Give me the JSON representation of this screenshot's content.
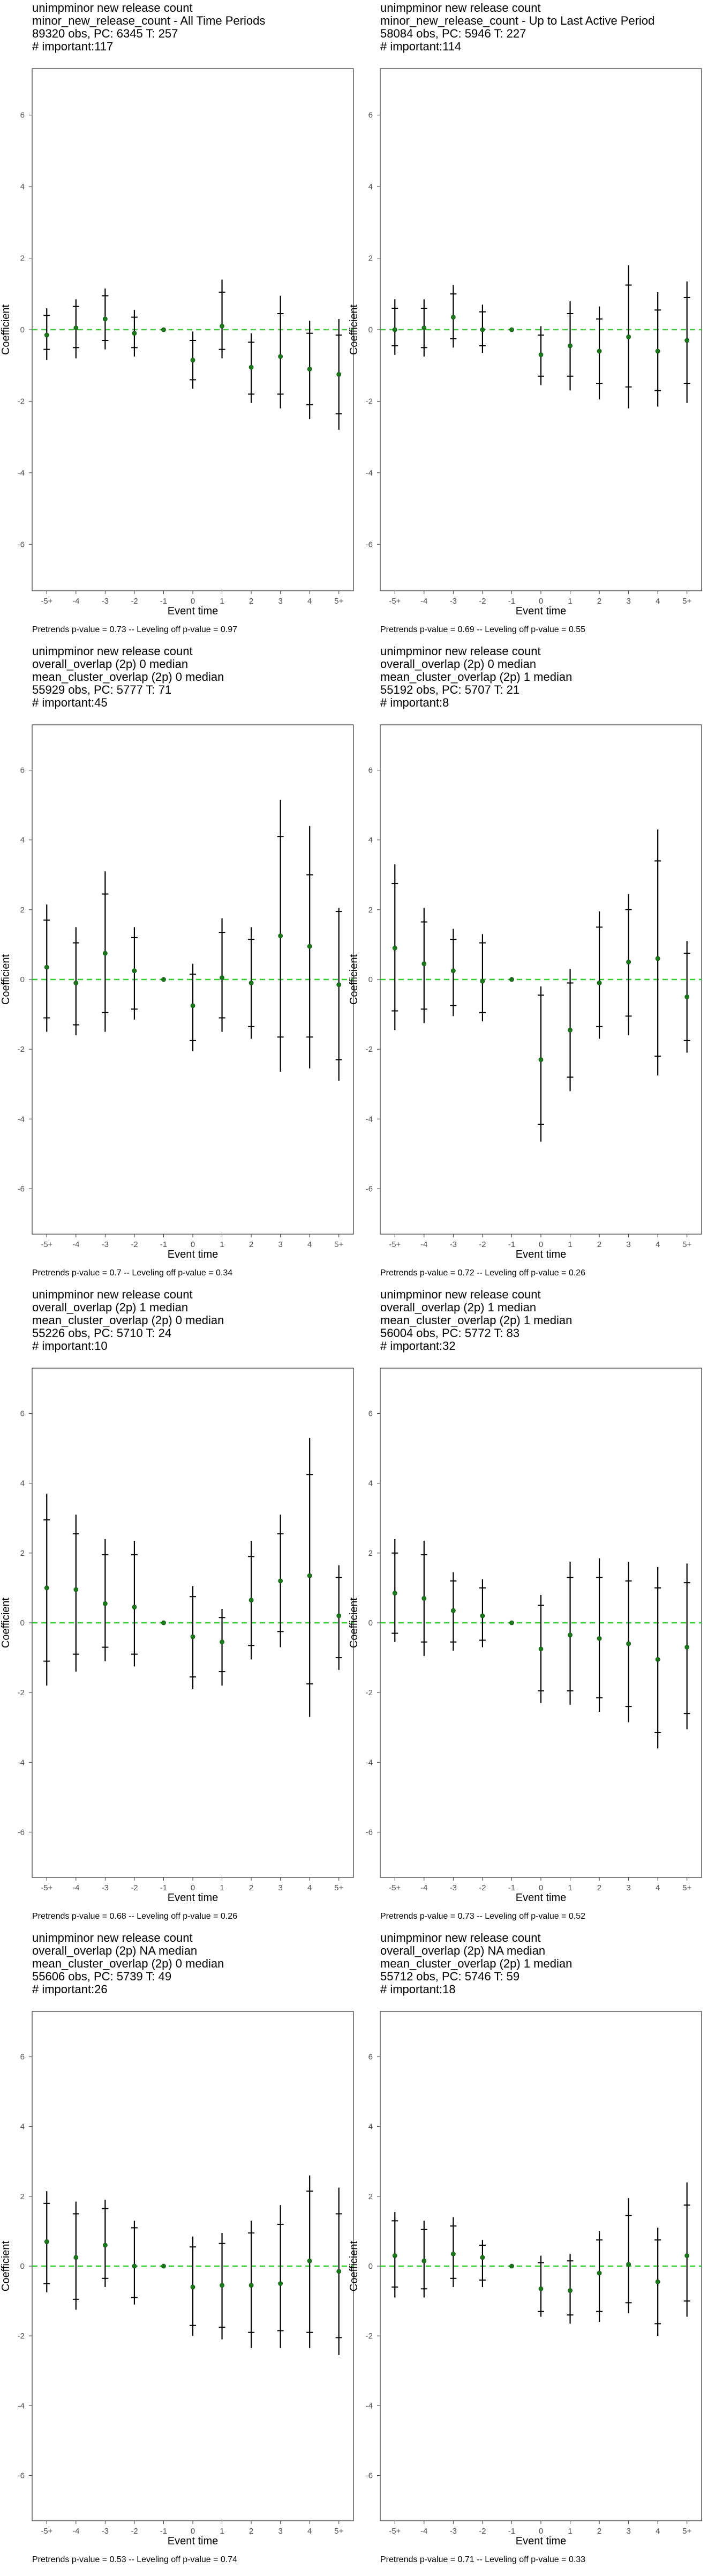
{
  "colors": {
    "zero_line": "#33cc33",
    "point": "#1a7a1a",
    "whisker": "#000000",
    "panel_border": "#333333",
    "text": "#000000",
    "tick_text": "#4d4d4d"
  },
  "chart_data": [
    {
      "type": "scatter",
      "title_lines": [
        " unimpminor new release count",
        "minor_new_release_count - All Time Periods",
        "89320 obs, PC: 6345 T: 257",
        "# important:117"
      ],
      "footer": "Pretrends p-value = 0.73 -- Leveling off p-value = 0.97",
      "xlabel": "Event time",
      "ylabel": "Coefficient",
      "categories": [
        "-5+",
        "-4",
        "-3",
        "-2",
        "-1",
        "0",
        "1",
        "2",
        "3",
        "4",
        "5+"
      ],
      "y_ticks": [
        -6,
        -4,
        -2,
        0,
        2,
        4,
        6
      ],
      "ylim": [
        -7.3,
        7.3
      ],
      "coef": [
        -0.15,
        0.05,
        0.3,
        -0.1,
        0.0,
        -0.85,
        0.1,
        -1.05,
        -0.75,
        -1.1,
        -1.25
      ],
      "ci95": [
        [
          -0.85,
          0.6
        ],
        [
          -0.8,
          0.85
        ],
        [
          -0.55,
          1.15
        ],
        [
          -0.75,
          0.55
        ],
        [
          0.0,
          0.0
        ],
        [
          -1.65,
          -0.05
        ],
        [
          -0.8,
          1.4
        ],
        [
          -2.05,
          -0.1
        ],
        [
          -2.2,
          0.95
        ],
        [
          -2.5,
          0.25
        ],
        [
          -2.8,
          0.3
        ]
      ],
      "ci90": [
        [
          -0.55,
          0.4
        ],
        [
          -0.5,
          0.65
        ],
        [
          -0.3,
          0.95
        ],
        [
          -0.5,
          0.35
        ],
        [
          0.0,
          0.0
        ],
        [
          -1.4,
          -0.3
        ],
        [
          -0.55,
          1.05
        ],
        [
          -1.8,
          -0.35
        ],
        [
          -1.8,
          0.45
        ],
        [
          -2.1,
          -0.1
        ],
        [
          -2.35,
          -0.15
        ]
      ],
      "grid": false
    },
    {
      "type": "scatter",
      "title_lines": [
        " unimpminor new release count",
        "minor_new_release_count - Up to Last Active Period",
        "58084 obs, PC: 5946 T: 227",
        "# important:114"
      ],
      "footer": "Pretrends p-value = 0.69 -- Leveling off p-value = 0.55",
      "xlabel": "Event time",
      "ylabel": "Coefficient",
      "categories": [
        "-5+",
        "-4",
        "-3",
        "-2",
        "-1",
        "0",
        "1",
        "2",
        "3",
        "4",
        "5+"
      ],
      "y_ticks": [
        -6,
        -4,
        -2,
        0,
        2,
        4,
        6
      ],
      "ylim": [
        -7.3,
        7.3
      ],
      "coef": [
        0.0,
        0.05,
        0.35,
        0.0,
        0.0,
        -0.7,
        -0.45,
        -0.6,
        -0.2,
        -0.6,
        -0.3
      ],
      "ci95": [
        [
          -0.7,
          0.85
        ],
        [
          -0.75,
          0.85
        ],
        [
          -0.5,
          1.25
        ],
        [
          -0.65,
          0.7
        ],
        [
          0.0,
          0.0
        ],
        [
          -1.55,
          0.1
        ],
        [
          -1.7,
          0.8
        ],
        [
          -1.95,
          0.65
        ],
        [
          -2.2,
          1.8
        ],
        [
          -2.15,
          1.05
        ],
        [
          -2.05,
          1.35
        ]
      ],
      "ci90": [
        [
          -0.45,
          0.6
        ],
        [
          -0.5,
          0.6
        ],
        [
          -0.25,
          1.0
        ],
        [
          -0.45,
          0.5
        ],
        [
          0.0,
          0.0
        ],
        [
          -1.3,
          -0.15
        ],
        [
          -1.3,
          0.45
        ],
        [
          -1.5,
          0.3
        ],
        [
          -1.6,
          1.25
        ],
        [
          -1.7,
          0.55
        ],
        [
          -1.5,
          0.9
        ]
      ],
      "grid": false
    },
    {
      "type": "scatter",
      "title_lines": [
        " unimpminor new release count",
        "overall_overlap (2p) 0 median",
        "mean_cluster_overlap (2p) 0 median",
        "55929 obs, PC: 5777 T: 71",
        "# important:45"
      ],
      "footer": "Pretrends p-value = 0.7 -- Leveling off p-value = 0.34",
      "xlabel": "Event time",
      "ylabel": "Coefficient",
      "categories": [
        "-5+",
        "-4",
        "-3",
        "-2",
        "-1",
        "0",
        "1",
        "2",
        "3",
        "4",
        "5+"
      ],
      "y_ticks": [
        -6,
        -4,
        -2,
        0,
        2,
        4,
        6
      ],
      "ylim": [
        -7.3,
        7.3
      ],
      "coef": [
        0.35,
        -0.1,
        0.75,
        0.25,
        0.0,
        -0.75,
        0.05,
        -0.1,
        1.25,
        0.95,
        -0.15
      ],
      "ci95": [
        [
          -1.5,
          2.15
        ],
        [
          -1.6,
          1.5
        ],
        [
          -1.5,
          3.1
        ],
        [
          -1.15,
          1.5
        ],
        [
          0.0,
          0.0
        ],
        [
          -2.05,
          0.45
        ],
        [
          -1.5,
          1.75
        ],
        [
          -1.7,
          1.5
        ],
        [
          -2.65,
          5.15
        ],
        [
          -2.55,
          4.4
        ],
        [
          -2.9,
          2.05
        ]
      ],
      "ci90": [
        [
          -1.1,
          1.7
        ],
        [
          -1.3,
          1.05
        ],
        [
          -0.95,
          2.45
        ],
        [
          -0.85,
          1.2
        ],
        [
          0.0,
          0.0
        ],
        [
          -1.75,
          0.15
        ],
        [
          -1.1,
          1.35
        ],
        [
          -1.35,
          1.15
        ],
        [
          -1.65,
          4.1
        ],
        [
          -1.65,
          3.0
        ],
        [
          -2.3,
          1.95
        ]
      ],
      "grid": false
    },
    {
      "type": "scatter",
      "title_lines": [
        " unimpminor new release count",
        "overall_overlap (2p) 0 median",
        "mean_cluster_overlap (2p) 1 median",
        "55192 obs, PC: 5707 T: 21",
        "# important:8"
      ],
      "footer": "Pretrends p-value = 0.72 -- Leveling off p-value = 0.26",
      "xlabel": "Event time",
      "ylabel": "Coefficient",
      "categories": [
        "-5+",
        "-4",
        "-3",
        "-2",
        "-1",
        "0",
        "1",
        "2",
        "3",
        "4",
        "5+"
      ],
      "y_ticks": [
        -6,
        -4,
        -2,
        0,
        2,
        4,
        6
      ],
      "ylim": [
        -7.3,
        7.3
      ],
      "coef": [
        0.9,
        0.45,
        0.25,
        -0.05,
        0.0,
        -2.3,
        -1.45,
        -0.1,
        0.5,
        0.6,
        -0.5
      ],
      "ci95": [
        [
          -1.45,
          3.3
        ],
        [
          -1.25,
          2.05
        ],
        [
          -1.05,
          1.45
        ],
        [
          -1.2,
          1.3
        ],
        [
          0.0,
          0.0
        ],
        [
          -4.65,
          -0.2
        ],
        [
          -3.2,
          0.3
        ],
        [
          -1.7,
          1.95
        ],
        [
          -1.6,
          2.45
        ],
        [
          -2.75,
          4.3
        ],
        [
          -2.1,
          1.1
        ]
      ],
      "ci90": [
        [
          -0.9,
          2.75
        ],
        [
          -0.85,
          1.65
        ],
        [
          -0.75,
          1.15
        ],
        [
          -0.95,
          1.05
        ],
        [
          0.0,
          0.0
        ],
        [
          -4.15,
          -0.45
        ],
        [
          -2.8,
          -0.1
        ],
        [
          -1.35,
          1.5
        ],
        [
          -1.05,
          2.0
        ],
        [
          -2.2,
          3.4
        ],
        [
          -1.75,
          0.75
        ]
      ],
      "grid": false
    },
    {
      "type": "scatter",
      "title_lines": [
        " unimpminor new release count",
        "overall_overlap (2p) 1 median",
        "mean_cluster_overlap (2p) 0 median",
        "55226 obs, PC: 5710 T: 24",
        "# important:10"
      ],
      "footer": "Pretrends p-value = 0.68 -- Leveling off p-value = 0.26",
      "xlabel": "Event time",
      "ylabel": "Coefficient",
      "categories": [
        "-5+",
        "-4",
        "-3",
        "-2",
        "-1",
        "0",
        "1",
        "2",
        "3",
        "4",
        "5+"
      ],
      "y_ticks": [
        -6,
        -4,
        -2,
        0,
        2,
        4,
        6
      ],
      "ylim": [
        -7.3,
        7.3
      ],
      "coef": [
        1.0,
        0.95,
        0.55,
        0.45,
        0.0,
        -0.4,
        -0.55,
        0.65,
        1.2,
        1.35,
        0.2
      ],
      "ci95": [
        [
          -1.8,
          3.7
        ],
        [
          -1.4,
          3.1
        ],
        [
          -1.1,
          2.4
        ],
        [
          -1.25,
          2.35
        ],
        [
          0.0,
          0.0
        ],
        [
          -1.9,
          1.05
        ],
        [
          -1.8,
          0.4
        ],
        [
          -1.05,
          2.35
        ],
        [
          -0.7,
          3.1
        ],
        [
          -2.7,
          5.3
        ],
        [
          -1.35,
          1.65
        ]
      ],
      "ci90": [
        [
          -1.1,
          2.95
        ],
        [
          -0.9,
          2.55
        ],
        [
          -0.7,
          1.95
        ],
        [
          -0.9,
          1.95
        ],
        [
          0.0,
          0.0
        ],
        [
          -1.55,
          0.75
        ],
        [
          -1.4,
          0.15
        ],
        [
          -0.65,
          1.9
        ],
        [
          -0.25,
          2.55
        ],
        [
          -1.75,
          4.25
        ],
        [
          -1.0,
          1.3
        ]
      ],
      "grid": false
    },
    {
      "type": "scatter",
      "title_lines": [
        " unimpminor new release count",
        "overall_overlap (2p) 1 median",
        "mean_cluster_overlap (2p) 1 median",
        "56004 obs, PC: 5772 T: 83",
        "# important:32"
      ],
      "footer": "Pretrends p-value = 0.73 -- Leveling off p-value = 0.52",
      "xlabel": "Event time",
      "ylabel": "Coefficient",
      "categories": [
        "-5+",
        "-4",
        "-3",
        "-2",
        "-1",
        "0",
        "1",
        "2",
        "3",
        "4",
        "5+"
      ],
      "y_ticks": [
        -6,
        -4,
        -2,
        0,
        2,
        4,
        6
      ],
      "ylim": [
        -7.3,
        7.3
      ],
      "coef": [
        0.85,
        0.7,
        0.35,
        0.2,
        0.0,
        -0.75,
        -0.35,
        -0.45,
        -0.6,
        -1.05,
        -0.7
      ],
      "ci95": [
        [
          -0.55,
          2.4
        ],
        [
          -0.95,
          2.35
        ],
        [
          -0.8,
          1.45
        ],
        [
          -0.7,
          1.25
        ],
        [
          0.0,
          0.0
        ],
        [
          -2.3,
          0.8
        ],
        [
          -2.35,
          1.75
        ],
        [
          -2.55,
          1.85
        ],
        [
          -2.85,
          1.75
        ],
        [
          -3.6,
          1.6
        ],
        [
          -3.05,
          1.7
        ]
      ],
      "ci90": [
        [
          -0.3,
          2.0
        ],
        [
          -0.55,
          1.95
        ],
        [
          -0.55,
          1.2
        ],
        [
          -0.5,
          1.0
        ],
        [
          0.0,
          0.0
        ],
        [
          -1.95,
          0.5
        ],
        [
          -1.95,
          1.3
        ],
        [
          -2.15,
          1.3
        ],
        [
          -2.4,
          1.2
        ],
        [
          -3.15,
          1.0
        ],
        [
          -2.6,
          1.15
        ]
      ],
      "grid": false
    },
    {
      "type": "scatter",
      "title_lines": [
        " unimpminor new release count",
        "overall_overlap (2p) NA median",
        "mean_cluster_overlap (2p) 0 median",
        "55606 obs, PC: 5739 T: 49",
        "# important:26"
      ],
      "footer": "Pretrends p-value = 0.53 -- Leveling off p-value = 0.74",
      "xlabel": "Event time",
      "ylabel": "Coefficient",
      "categories": [
        "-5+",
        "-4",
        "-3",
        "-2",
        "-1",
        "0",
        "1",
        "2",
        "3",
        "4",
        "5+"
      ],
      "y_ticks": [
        -6,
        -4,
        -2,
        0,
        2,
        4,
        6
      ],
      "ylim": [
        -7.3,
        7.3
      ],
      "coef": [
        0.7,
        0.25,
        0.6,
        0.0,
        0.0,
        -0.6,
        -0.55,
        -0.55,
        -0.5,
        0.15,
        -0.15
      ],
      "ci95": [
        [
          -0.75,
          2.15
        ],
        [
          -1.25,
          1.85
        ],
        [
          -0.6,
          1.9
        ],
        [
          -1.1,
          1.3
        ],
        [
          0.0,
          0.0
        ],
        [
          -2.0,
          0.85
        ],
        [
          -2.1,
          0.95
        ],
        [
          -2.35,
          1.3
        ],
        [
          -2.35,
          1.75
        ],
        [
          -2.35,
          2.6
        ],
        [
          -2.55,
          2.25
        ]
      ],
      "ci90": [
        [
          -0.5,
          1.8
        ],
        [
          -0.95,
          1.5
        ],
        [
          -0.35,
          1.65
        ],
        [
          -0.9,
          1.1
        ],
        [
          0.0,
          0.0
        ],
        [
          -1.7,
          0.55
        ],
        [
          -1.75,
          0.65
        ],
        [
          -1.9,
          0.95
        ],
        [
          -1.85,
          1.2
        ],
        [
          -1.9,
          2.15
        ],
        [
          -2.05,
          1.5
        ]
      ],
      "grid": false
    },
    {
      "type": "scatter",
      "title_lines": [
        " unimpminor new release count",
        "overall_overlap (2p) NA median",
        "mean_cluster_overlap (2p) 1 median",
        "55712 obs, PC: 5746 T: 59",
        "# important:18"
      ],
      "footer": "Pretrends p-value = 0.71 -- Leveling off p-value = 0.33",
      "xlabel": "Event time",
      "ylabel": "Coefficient",
      "categories": [
        "-5+",
        "-4",
        "-3",
        "-2",
        "-1",
        "0",
        "1",
        "2",
        "3",
        "4",
        "5+"
      ],
      "y_ticks": [
        -6,
        -4,
        -2,
        0,
        2,
        4,
        6
      ],
      "ylim": [
        -7.3,
        7.3
      ],
      "coef": [
        0.3,
        0.15,
        0.35,
        0.25,
        0.0,
        -0.65,
        -0.7,
        -0.2,
        0.05,
        -0.45,
        0.3
      ],
      "ci95": [
        [
          -0.9,
          1.55
        ],
        [
          -0.9,
          1.3
        ],
        [
          -0.6,
          1.4
        ],
        [
          -0.6,
          0.75
        ],
        [
          0.0,
          0.0
        ],
        [
          -1.45,
          0.3
        ],
        [
          -1.65,
          0.35
        ],
        [
          -1.6,
          1.0
        ],
        [
          -1.35,
          1.95
        ],
        [
          -2.0,
          1.1
        ],
        [
          -1.45,
          2.4
        ]
      ],
      "ci90": [
        [
          -0.6,
          1.3
        ],
        [
          -0.65,
          1.05
        ],
        [
          -0.35,
          1.15
        ],
        [
          -0.4,
          0.6
        ],
        [
          0.0,
          0.0
        ],
        [
          -1.3,
          0.1
        ],
        [
          -1.4,
          0.15
        ],
        [
          -1.3,
          0.75
        ],
        [
          -1.05,
          1.45
        ],
        [
          -1.65,
          0.75
        ],
        [
          -1.0,
          1.75
        ]
      ],
      "grid": false
    }
  ]
}
